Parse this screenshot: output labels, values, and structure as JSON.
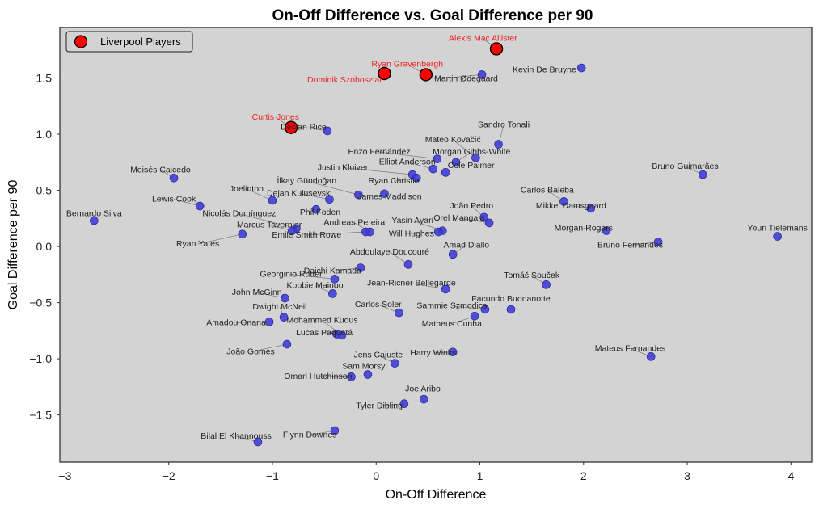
{
  "chart_data": {
    "type": "scatter",
    "title": "On-Off Difference vs. Goal Difference per 90",
    "xlabel": "On-Off Difference",
    "ylabel": "Goal Difference per 90",
    "xlim": [
      -3.05,
      4.2
    ],
    "ylim": [
      -1.92,
      1.95
    ],
    "xticks": [
      -3,
      -2,
      -1,
      0,
      1,
      2,
      3,
      4
    ],
    "yticks": [
      -1.5,
      -1.0,
      -0.5,
      0.0,
      0.5,
      1.0,
      1.5
    ],
    "xtick_labels": [
      "−3",
      "−2",
      "−1",
      "0",
      "1",
      "2",
      "3",
      "4"
    ],
    "ytick_labels": [
      "−1.5",
      "−1.0",
      "−0.5",
      "0.0",
      "0.5",
      "1.0",
      "1.5"
    ],
    "grid": false,
    "legend": {
      "label": "Liverpool Players",
      "placement": "top-left"
    },
    "colors": {
      "background": "#d3d3d3",
      "other": "#3b3bd9",
      "highlight": "#ff0000",
      "highlight_label": "#ee2222"
    },
    "points": [
      {
        "name": "Alexis Mac Allister",
        "x": 1.16,
        "y": 1.76,
        "lfc": true,
        "lx": 1.03,
        "ly": 1.83,
        "anchor": "middle"
      },
      {
        "name": "Ryan Gravenbergh",
        "x": 0.48,
        "y": 1.53,
        "lfc": true,
        "lx": 0.3,
        "ly": 1.6,
        "anchor": "middle"
      },
      {
        "name": "Dominik Szoboszlai",
        "x": 0.08,
        "y": 1.54,
        "lfc": true,
        "lx": 0.05,
        "ly": 1.46,
        "anchor": "end"
      },
      {
        "name": "Curtis Jones",
        "x": -0.82,
        "y": 1.06,
        "lfc": true,
        "lx": -0.97,
        "ly": 1.13,
        "anchor": "middle"
      },
      {
        "name": "Martin Ødegaard",
        "x": 1.02,
        "y": 1.53,
        "lx": 0.56,
        "ly": 1.47,
        "anchor": "start"
      },
      {
        "name": "Kevin De Bruyne",
        "x": 1.98,
        "y": 1.59,
        "lx": 1.93,
        "ly": 1.55,
        "anchor": "end"
      },
      {
        "name": "Declan Rice",
        "x": -0.47,
        "y": 1.03,
        "lx": -0.7,
        "ly": 1.04,
        "anchor": "middle"
      },
      {
        "name": "Sandro Tonali",
        "x": 1.18,
        "y": 0.91,
        "lx": 1.23,
        "ly": 1.06,
        "anchor": "middle"
      },
      {
        "name": "Mateo Kovačić",
        "x": 0.96,
        "y": 0.79,
        "lx": 0.74,
        "ly": 0.93,
        "anchor": "middle"
      },
      {
        "name": "Enzo Fernández",
        "x": 0.59,
        "y": 0.78,
        "lx": 0.03,
        "ly": 0.82,
        "anchor": "middle"
      },
      {
        "name": "Morgan Gibbs-White",
        "x": 0.77,
        "y": 0.75,
        "lx": 0.92,
        "ly": 0.82,
        "anchor": "middle"
      },
      {
        "name": "Elliot Anderson",
        "x": 0.55,
        "y": 0.69,
        "lx": 0.3,
        "ly": 0.73,
        "anchor": "middle"
      },
      {
        "name": "Cole Palmer",
        "x": 0.67,
        "y": 0.66,
        "lx": 0.69,
        "ly": 0.7,
        "anchor": "start"
      },
      {
        "name": "Justin Kluivert",
        "x": 0.35,
        "y": 0.64,
        "lx": -0.31,
        "ly": 0.68,
        "anchor": "middle"
      },
      {
        "name": "Ryan Christie",
        "x": 0.39,
        "y": 0.61,
        "lx": 0.17,
        "ly": 0.56,
        "anchor": "middle"
      },
      {
        "name": "Bruno Guimarães",
        "x": 3.15,
        "y": 0.64,
        "lx": 2.98,
        "ly": 0.69,
        "anchor": "middle"
      },
      {
        "name": "Moisés Caicedo",
        "x": -1.95,
        "y": 0.61,
        "lx": -2.08,
        "ly": 0.66,
        "anchor": "middle"
      },
      {
        "name": "İlkay Gündoğan",
        "x": -0.17,
        "y": 0.46,
        "lx": -0.67,
        "ly": 0.56,
        "anchor": "middle"
      },
      {
        "name": "Joelinton",
        "x": -1.0,
        "y": 0.41,
        "lx": -1.25,
        "ly": 0.49,
        "anchor": "middle"
      },
      {
        "name": "Dejan Kulusevski",
        "x": -0.45,
        "y": 0.42,
        "lx": -0.74,
        "ly": 0.45,
        "anchor": "middle"
      },
      {
        "name": "James Maddison",
        "x": 0.08,
        "y": 0.47,
        "lx": 0.13,
        "ly": 0.42,
        "anchor": "middle"
      },
      {
        "name": "Carlos Baleba",
        "x": 1.81,
        "y": 0.4,
        "lx": 1.65,
        "ly": 0.48,
        "anchor": "middle"
      },
      {
        "name": "Lewis Cook",
        "x": -1.7,
        "y": 0.36,
        "lx": -1.95,
        "ly": 0.4,
        "anchor": "middle"
      },
      {
        "name": "Mikkel Damsgaard",
        "x": 2.07,
        "y": 0.34,
        "lx": 1.88,
        "ly": 0.34,
        "anchor": "middle"
      },
      {
        "name": "João Pedro",
        "x": 1.04,
        "y": 0.26,
        "lx": 0.92,
        "ly": 0.34,
        "anchor": "middle"
      },
      {
        "name": "Phil Foden",
        "x": -0.58,
        "y": 0.33,
        "lx": -0.54,
        "ly": 0.28,
        "anchor": "middle"
      },
      {
        "name": "Nicolás Domínguez",
        "x": -0.77,
        "y": 0.16,
        "lx": -1.32,
        "ly": 0.27,
        "anchor": "middle"
      },
      {
        "name": "Bernardo Silva",
        "x": -2.72,
        "y": 0.23,
        "lx": -2.72,
        "ly": 0.27,
        "anchor": "middle"
      },
      {
        "name": "Orel Mangala",
        "x": 1.09,
        "y": 0.21,
        "lx": 0.8,
        "ly": 0.23,
        "anchor": "middle"
      },
      {
        "name": "Yasin Ayari",
        "x": 0.64,
        "y": 0.14,
        "lx": 0.35,
        "ly": 0.21,
        "anchor": "middle"
      },
      {
        "name": "Andreas Pereira",
        "x": -0.06,
        "y": 0.13,
        "lx": -0.21,
        "ly": 0.19,
        "anchor": "middle"
      },
      {
        "name": "Marcus Tavernier",
        "x": -0.81,
        "y": 0.14,
        "lx": -1.03,
        "ly": 0.17,
        "anchor": "middle"
      },
      {
        "name": "Morgan Rogers",
        "x": 2.22,
        "y": 0.14,
        "lx": 2.0,
        "ly": 0.14,
        "anchor": "middle"
      },
      {
        "name": "Youri Tielemans",
        "x": 3.87,
        "y": 0.09,
        "lx": 3.87,
        "ly": 0.14,
        "anchor": "middle"
      },
      {
        "name": "Will Hughes",
        "x": 0.6,
        "y": 0.13,
        "lx": 0.34,
        "ly": 0.09,
        "anchor": "middle"
      },
      {
        "name": "Emile Smith Rowe",
        "x": -0.1,
        "y": 0.13,
        "lx": -0.67,
        "ly": 0.08,
        "anchor": "middle"
      },
      {
        "name": "Ryan Yates",
        "x": -1.29,
        "y": 0.11,
        "lx": -1.72,
        "ly": 0.0,
        "anchor": "middle"
      },
      {
        "name": "Bruno Fernandes",
        "x": 2.72,
        "y": 0.04,
        "lx": 2.45,
        "ly": -0.01,
        "anchor": "middle"
      },
      {
        "name": "Amad Diallo",
        "x": 0.74,
        "y": -0.07,
        "lx": 0.87,
        "ly": -0.01,
        "anchor": "middle"
      },
      {
        "name": "Abdoulaye Doucouré",
        "x": 0.31,
        "y": -0.16,
        "lx": 0.13,
        "ly": -0.07,
        "anchor": "middle"
      },
      {
        "name": "Daichi Kamada",
        "x": -0.15,
        "y": -0.19,
        "lx": -0.42,
        "ly": -0.24,
        "anchor": "middle"
      },
      {
        "name": "Georginio Rutter",
        "x": -0.4,
        "y": -0.29,
        "lx": -0.82,
        "ly": -0.27,
        "anchor": "middle"
      },
      {
        "name": "Tomáš Souček",
        "x": 1.64,
        "y": -0.34,
        "lx": 1.5,
        "ly": -0.28,
        "anchor": "middle"
      },
      {
        "name": "Jean-Ricner Bellegarde",
        "x": 0.67,
        "y": -0.38,
        "lx": 0.34,
        "ly": -0.35,
        "anchor": "middle"
      },
      {
        "name": "Kobbie Mainoo",
        "x": -0.42,
        "y": -0.42,
        "lx": -0.59,
        "ly": -0.37,
        "anchor": "middle"
      },
      {
        "name": "John McGinn",
        "x": -0.88,
        "y": -0.46,
        "lx": -1.15,
        "ly": -0.43,
        "anchor": "middle"
      },
      {
        "name": "Facundo Buonanotte",
        "x": 1.3,
        "y": -0.56,
        "lx": 1.3,
        "ly": -0.49,
        "anchor": "middle"
      },
      {
        "name": "Sammie Szmodics",
        "x": 1.05,
        "y": -0.56,
        "lx": 0.73,
        "ly": -0.55,
        "anchor": "middle"
      },
      {
        "name": "Carlos Soler",
        "x": 0.22,
        "y": -0.59,
        "lx": 0.02,
        "ly": -0.54,
        "anchor": "middle"
      },
      {
        "name": "Dwight McNeil",
        "x": -0.89,
        "y": -0.63,
        "lx": -0.93,
        "ly": -0.56,
        "anchor": "middle"
      },
      {
        "name": "Matheus Cunha",
        "x": 0.95,
        "y": -0.62,
        "lx": 0.73,
        "ly": -0.71,
        "anchor": "middle"
      },
      {
        "name": "Mohammed Kudus",
        "x": -0.33,
        "y": -0.79,
        "lx": -0.52,
        "ly": -0.68,
        "anchor": "middle"
      },
      {
        "name": "Amadou Onana",
        "x": -1.03,
        "y": -0.67,
        "lx": -1.35,
        "ly": -0.7,
        "anchor": "middle"
      },
      {
        "name": "Lucas Paquetá",
        "x": -0.38,
        "y": -0.78,
        "lx": -0.5,
        "ly": -0.79,
        "anchor": "middle"
      },
      {
        "name": "João Gomes",
        "x": -0.86,
        "y": -0.87,
        "lx": -1.21,
        "ly": -0.96,
        "anchor": "middle"
      },
      {
        "name": "Harry Winks",
        "x": 0.74,
        "y": -0.94,
        "lx": 0.55,
        "ly": -0.97,
        "anchor": "middle"
      },
      {
        "name": "Mateus Fernandes",
        "x": 2.65,
        "y": -0.98,
        "lx": 2.45,
        "ly": -0.93,
        "anchor": "middle"
      },
      {
        "name": "Jens Cajuste",
        "x": 0.18,
        "y": -1.04,
        "lx": 0.02,
        "ly": -0.99,
        "anchor": "middle"
      },
      {
        "name": "Sam Morsy",
        "x": -0.08,
        "y": -1.14,
        "lx": -0.12,
        "ly": -1.09,
        "anchor": "middle"
      },
      {
        "name": "Omari Hutchinson",
        "x": -0.24,
        "y": -1.16,
        "lx": -0.56,
        "ly": -1.18,
        "anchor": "middle"
      },
      {
        "name": "Joe Aribo",
        "x": 0.46,
        "y": -1.36,
        "lx": 0.45,
        "ly": -1.29,
        "anchor": "middle"
      },
      {
        "name": "Tyler Dibling",
        "x": 0.27,
        "y": -1.4,
        "lx": 0.03,
        "ly": -1.44,
        "anchor": "middle"
      },
      {
        "name": "Flynn Downes",
        "x": -0.4,
        "y": -1.64,
        "lx": -0.64,
        "ly": -1.7,
        "anchor": "middle"
      },
      {
        "name": "Bilal El Khannouss",
        "x": -1.14,
        "y": -1.74,
        "lx": -1.35,
        "ly": -1.71,
        "anchor": "middle"
      }
    ]
  }
}
